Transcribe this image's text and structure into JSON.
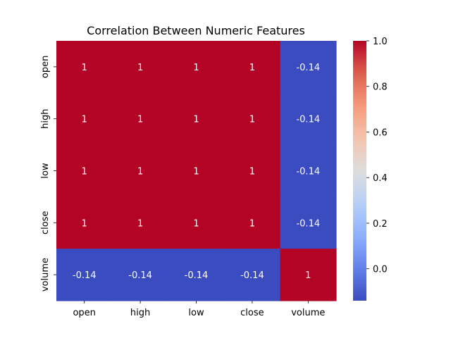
{
  "chart_data": {
    "type": "heatmap",
    "title": "Correlation Between Numeric Features",
    "row_labels": [
      "open",
      "high",
      "low",
      "close",
      "volume"
    ],
    "col_labels": [
      "open",
      "high",
      "low",
      "close",
      "volume"
    ],
    "values": [
      [
        1,
        1,
        1,
        1,
        -0.14
      ],
      [
        1,
        1,
        1,
        1,
        -0.14
      ],
      [
        1,
        1,
        1,
        1,
        -0.14
      ],
      [
        1,
        1,
        1,
        1,
        -0.14
      ],
      [
        -0.14,
        -0.14,
        -0.14,
        -0.14,
        1
      ]
    ],
    "cell_labels": [
      [
        "1",
        "1",
        "1",
        "1",
        "-0.14"
      ],
      [
        "1",
        "1",
        "1",
        "1",
        "-0.14"
      ],
      [
        "1",
        "1",
        "1",
        "1",
        "-0.14"
      ],
      [
        "1",
        "1",
        "1",
        "1",
        "-0.14"
      ],
      [
        "-0.14",
        "-0.14",
        "-0.14",
        "-0.14",
        "1"
      ]
    ],
    "colormap": "coolwarm",
    "color_low": "#3b4cc0",
    "color_high": "#b40426",
    "colorbar": {
      "range": [
        -0.14,
        1.0
      ],
      "ticks": [
        0.0,
        0.2,
        0.4,
        0.6,
        0.8,
        1.0
      ],
      "tick_labels": [
        "0.0",
        "0.2",
        "0.4",
        "0.6",
        "0.8",
        "1.0"
      ],
      "placement": "right"
    },
    "grid": false
  }
}
